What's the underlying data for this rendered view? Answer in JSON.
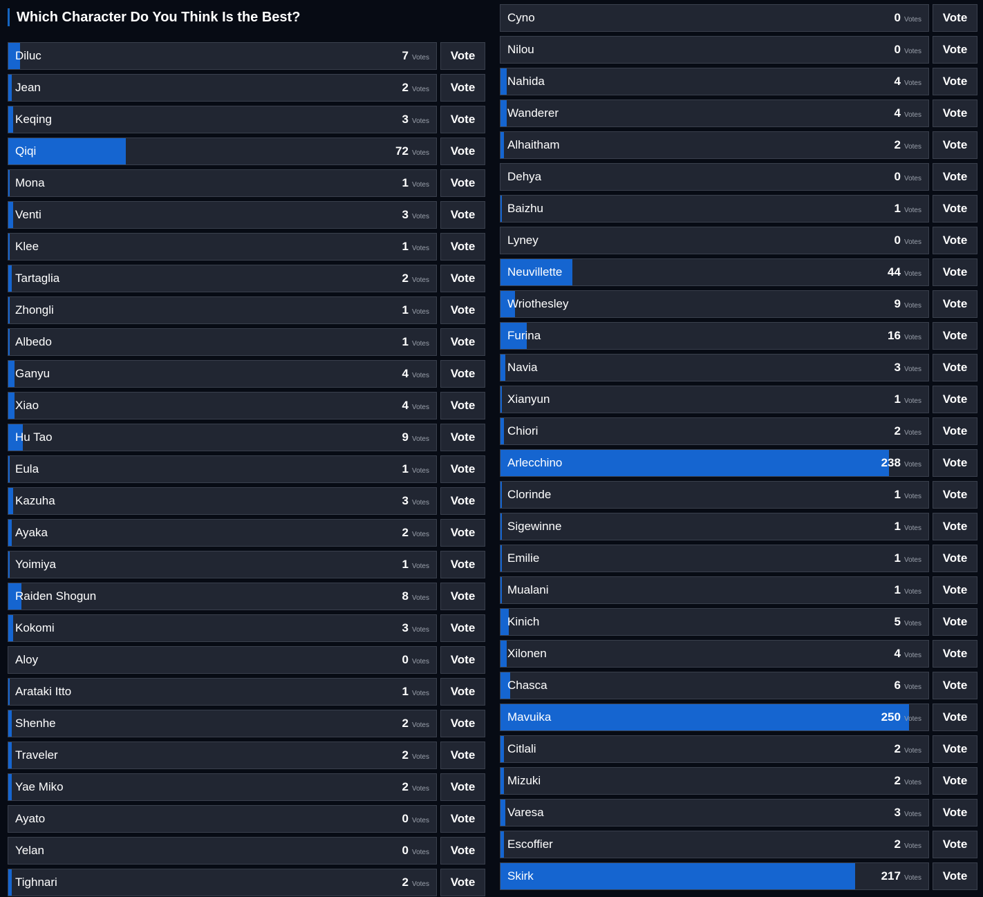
{
  "poll": {
    "title": "Which Character Do You Think Is the Best?",
    "vote_label": "Vote",
    "votes_unit": "Votes",
    "max_votes": 262
  },
  "left_column": [
    {
      "name": "Diluc",
      "votes": 7
    },
    {
      "name": "Jean",
      "votes": 2
    },
    {
      "name": "Keqing",
      "votes": 3
    },
    {
      "name": "Qiqi",
      "votes": 72
    },
    {
      "name": "Mona",
      "votes": 1
    },
    {
      "name": "Venti",
      "votes": 3
    },
    {
      "name": "Klee",
      "votes": 1
    },
    {
      "name": "Tartaglia",
      "votes": 2
    },
    {
      "name": "Zhongli",
      "votes": 1
    },
    {
      "name": "Albedo",
      "votes": 1
    },
    {
      "name": "Ganyu",
      "votes": 4
    },
    {
      "name": "Xiao",
      "votes": 4
    },
    {
      "name": "Hu Tao",
      "votes": 9
    },
    {
      "name": "Eula",
      "votes": 1
    },
    {
      "name": "Kazuha",
      "votes": 3
    },
    {
      "name": "Ayaka",
      "votes": 2
    },
    {
      "name": "Yoimiya",
      "votes": 1
    },
    {
      "name": "Raiden Shogun",
      "votes": 8
    },
    {
      "name": "Kokomi",
      "votes": 3
    },
    {
      "name": "Aloy",
      "votes": 0
    },
    {
      "name": "Arataki Itto",
      "votes": 1
    },
    {
      "name": "Shenhe",
      "votes": 2
    },
    {
      "name": "Traveler",
      "votes": 2
    },
    {
      "name": "Yae Miko",
      "votes": 2
    },
    {
      "name": "Ayato",
      "votes": 0
    },
    {
      "name": "Yelan",
      "votes": 0
    },
    {
      "name": "Tighnari",
      "votes": 2
    }
  ],
  "right_column": [
    {
      "name": "Cyno",
      "votes": 0
    },
    {
      "name": "Nilou",
      "votes": 0
    },
    {
      "name": "Nahida",
      "votes": 4
    },
    {
      "name": "Wanderer",
      "votes": 4
    },
    {
      "name": "Alhaitham",
      "votes": 2
    },
    {
      "name": "Dehya",
      "votes": 0
    },
    {
      "name": "Baizhu",
      "votes": 1
    },
    {
      "name": "Lyney",
      "votes": 0
    },
    {
      "name": "Neuvillette",
      "votes": 44
    },
    {
      "name": "Wriothesley",
      "votes": 9
    },
    {
      "name": "Furina",
      "votes": 16
    },
    {
      "name": "Navia",
      "votes": 3
    },
    {
      "name": "Xianyun",
      "votes": 1
    },
    {
      "name": "Chiori",
      "votes": 2
    },
    {
      "name": "Arlecchino",
      "votes": 238
    },
    {
      "name": "Clorinde",
      "votes": 1
    },
    {
      "name": "Sigewinne",
      "votes": 1
    },
    {
      "name": "Emilie",
      "votes": 1
    },
    {
      "name": "Mualani",
      "votes": 1
    },
    {
      "name": "Kinich",
      "votes": 5
    },
    {
      "name": "Xilonen",
      "votes": 4
    },
    {
      "name": "Chasca",
      "votes": 6
    },
    {
      "name": "Mavuika",
      "votes": 250
    },
    {
      "name": "Citlali",
      "votes": 2
    },
    {
      "name": "Mizuki",
      "votes": 2
    },
    {
      "name": "Varesa",
      "votes": 3
    },
    {
      "name": "Escoffier",
      "votes": 2
    },
    {
      "name": "Skirk",
      "votes": 217
    }
  ],
  "colors": {
    "page_background": "#070b14",
    "row_background": "#212632",
    "row_border": "#3a404d",
    "progress_fill": "#1565d0",
    "title_accent": "#1565c0",
    "text": "#ffffff",
    "muted_text": "#9aa0ab"
  }
}
